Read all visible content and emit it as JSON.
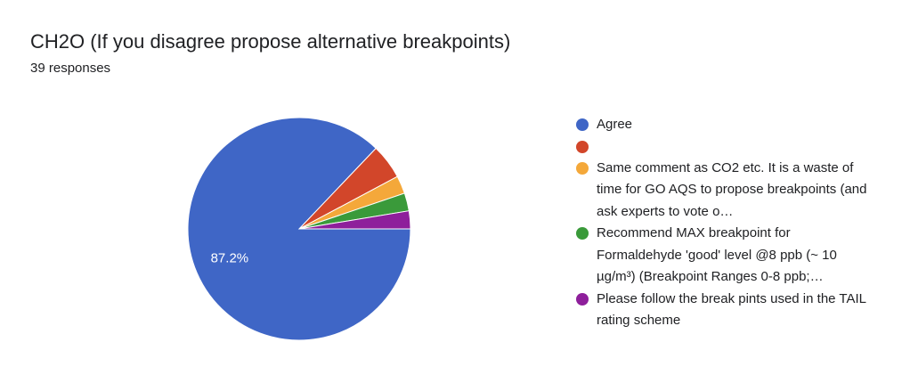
{
  "chart_data": {
    "type": "pie",
    "title": "CH2O (If you disagree propose alternative breakpoints)",
    "subtitle": "39 responses",
    "categories": [
      "Agree",
      null,
      "Same comment as CO2 etc. It is a waste of time for GO AQS to propose breakpoints (and ask experts to vote o…",
      "Recommend MAX breakpoint for Formaldehyde 'good' level @8 ppb (~ 10 µg/m³) (Breakpoint Ranges 0-8 ppb;…",
      "Please follow the break pints used in the TAIL rating scheme"
    ],
    "values": [
      87.2,
      5.1,
      2.6,
      2.6,
      2.6
    ],
    "value_labels": [
      "87.2%",
      null,
      null,
      null,
      null
    ],
    "colors": [
      "#3f66c6",
      "#d2462a",
      "#f4a83a",
      "#3a9a3a",
      "#8e1f9b"
    ]
  }
}
